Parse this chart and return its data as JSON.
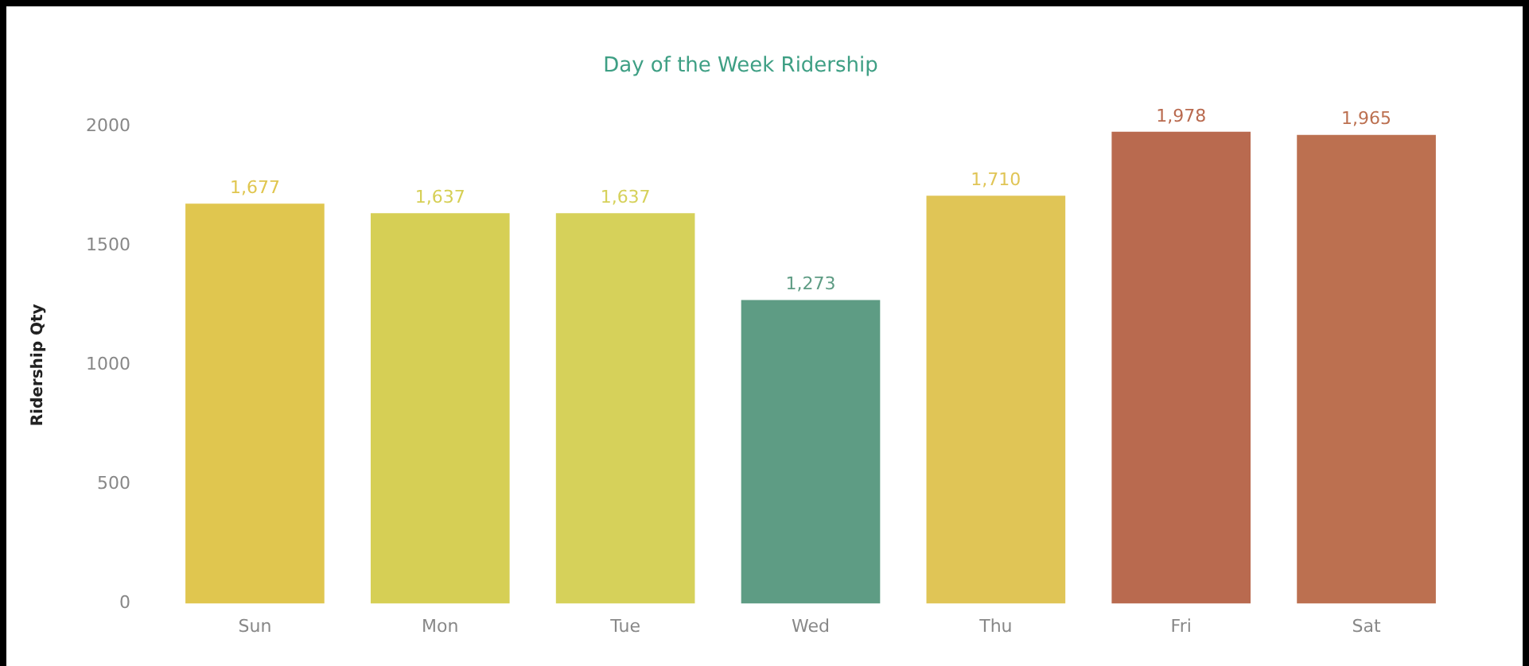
{
  "chart_data": {
    "type": "bar",
    "title": "Day of the Week Ridership",
    "ylabel": "Ridership Qty",
    "categories": [
      "Sun",
      "Mon",
      "Tue",
      "Wed",
      "Thu",
      "Fri",
      "Sat"
    ],
    "values": [
      1677,
      1637,
      1637,
      1273,
      1710,
      1978,
      1965
    ],
    "colors": [
      "#e0c64f",
      "#d6cf55",
      "#d6d15a",
      "#5e9c84",
      "#e0c556",
      "#b96a4f",
      "#bc7050"
    ],
    "value_labels": [
      "1,677",
      "1,637",
      "1,637",
      "1,273",
      "1,710",
      "1,978",
      "1,965"
    ],
    "ylim": [
      0,
      2000
    ],
    "yticks": [
      0,
      500,
      1000,
      1500,
      2000
    ],
    "grid": false
  }
}
